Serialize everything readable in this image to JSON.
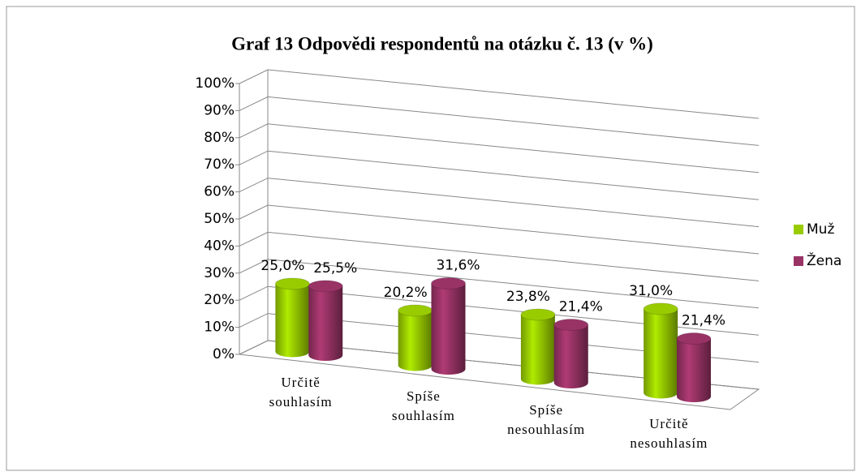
{
  "chart_data": {
    "type": "bar3d",
    "title": "Graf 13  Odpovědi respondentů na otázku č. 13 (v %)",
    "categories": [
      "Určitě souhlasím",
      "Spíše souhlasím",
      "Spíše nesouhlasím",
      "Určitě nesouhlasím"
    ],
    "series": [
      {
        "name": "Muž",
        "color": "#99cc00",
        "values": [
          25.0,
          20.2,
          23.8,
          31.0
        ],
        "value_labels": [
          "25,0%",
          "20,2%",
          "23,8%",
          "31,0%"
        ]
      },
      {
        "name": "Žena",
        "color": "#993366",
        "values": [
          25.5,
          31.6,
          21.4,
          21.4
        ],
        "value_labels": [
          "25,5%",
          "31,6%",
          "21,4%",
          "21,4%"
        ]
      }
    ],
    "ylim": [
      0,
      100
    ],
    "yticks": [
      {
        "value": 0,
        "label": "0%"
      },
      {
        "value": 10,
        "label": "10%"
      },
      {
        "value": 20,
        "label": "20%"
      },
      {
        "value": 30,
        "label": "30%"
      },
      {
        "value": 40,
        "label": "40%"
      },
      {
        "value": 50,
        "label": "50%"
      },
      {
        "value": 60,
        "label": "60%"
      },
      {
        "value": 70,
        "label": "70%"
      },
      {
        "value": 80,
        "label": "80%"
      },
      {
        "value": 90,
        "label": "90%"
      },
      {
        "value": 100,
        "label": "100%"
      }
    ],
    "grid": true,
    "legend": "right"
  }
}
